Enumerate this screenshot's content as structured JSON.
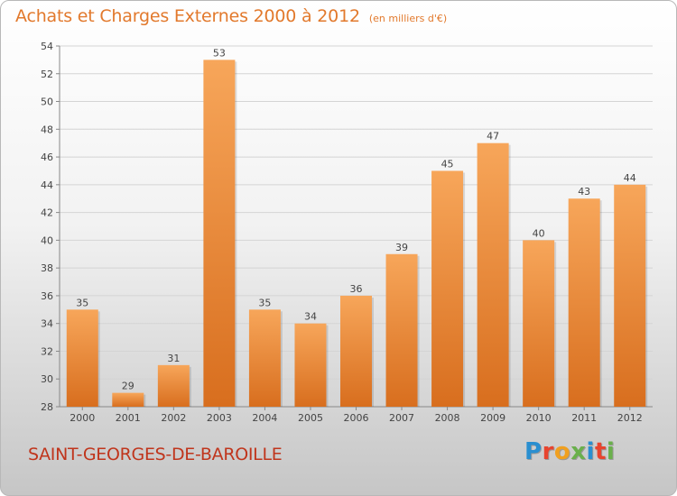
{
  "title": "Achats et Charges Externes 2000 à 2012",
  "unit_note": "(en milliers d'€)",
  "commune": "SAINT-GEORGES-DE-BAROILLE",
  "logo": {
    "text": "Proxiti",
    "colors": [
      "#2a8fd0",
      "#e8442e",
      "#f0a020",
      "#6ab04c",
      "#2a8fd0",
      "#e8442e",
      "#6ab04c"
    ]
  },
  "colors": {
    "bar_light": "#f7a65a",
    "bar_dark": "#d86e1e",
    "title": "#e2792c",
    "commune": "#c0351c"
  },
  "chart_data": {
    "type": "bar",
    "categories": [
      "2000",
      "2001",
      "2002",
      "2003",
      "2004",
      "2005",
      "2006",
      "2007",
      "2008",
      "2009",
      "2010",
      "2011",
      "2012"
    ],
    "values": [
      35,
      29,
      31,
      53,
      35,
      34,
      36,
      39,
      45,
      47,
      40,
      43,
      44
    ],
    "ylim": [
      28,
      54
    ],
    "yticks": [
      28,
      30,
      32,
      34,
      36,
      38,
      40,
      42,
      44,
      46,
      48,
      50,
      52,
      54
    ],
    "grid": true,
    "data_labels": true,
    "xlabel": "",
    "ylabel": ""
  }
}
